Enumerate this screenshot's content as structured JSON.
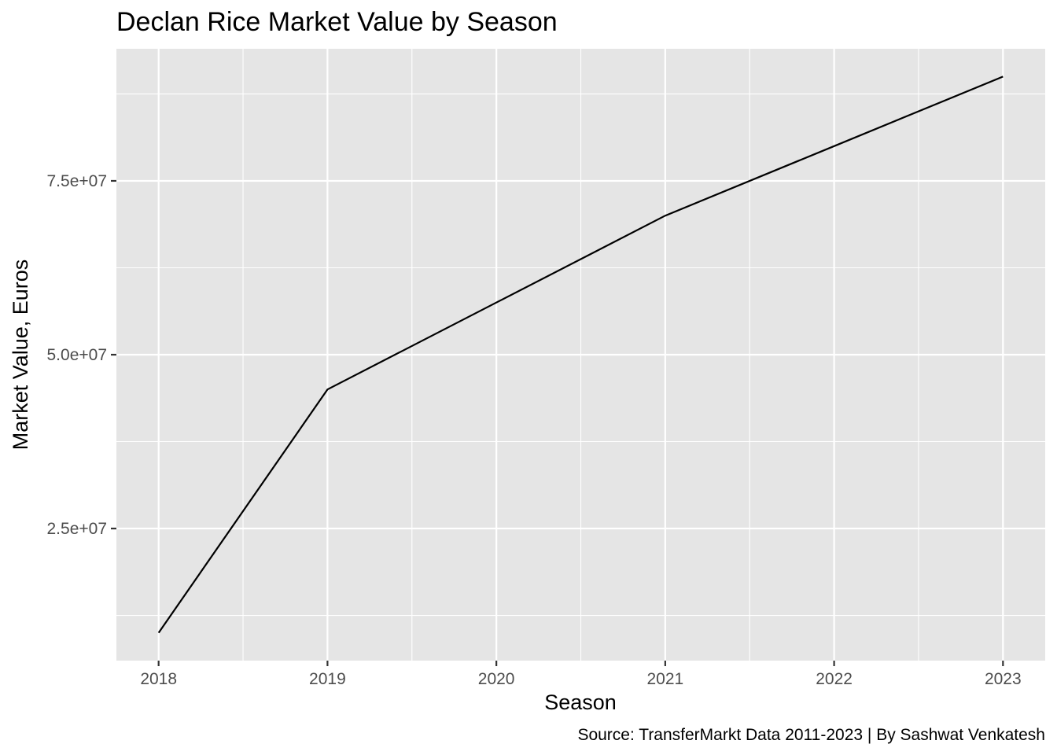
{
  "chart_data": {
    "type": "line",
    "title": "Declan Rice Market Value by Season",
    "xlabel": "Season",
    "ylabel": "Market Value, Euros",
    "caption": "Source: TransferMarkt Data 2011-2023 | By Sashwat Venkatesh",
    "x_ticks": [
      "2018",
      "2019",
      "2020",
      "2021",
      "2022",
      "2023"
    ],
    "y_ticks": [
      {
        "value": 25000000,
        "label": "2.5e+07"
      },
      {
        "value": 50000000,
        "label": "5.0e+07"
      },
      {
        "value": 75000000,
        "label": "7.5e+07"
      }
    ],
    "xlim": [
      2017.75,
      2023.25
    ],
    "ylim": [
      6000000,
      94000000
    ],
    "grid": true,
    "series": [
      {
        "x": [
          2018,
          2019,
          2020,
          2021,
          2022,
          2023
        ],
        "values": [
          10000000,
          45000000,
          57500000,
          70000000,
          80000000,
          90000000
        ]
      }
    ],
    "colors": {
      "panel": "#e5e5e5",
      "grid": "#ffffff",
      "line": "#000000",
      "tick_text": "#4d4d4d"
    }
  }
}
